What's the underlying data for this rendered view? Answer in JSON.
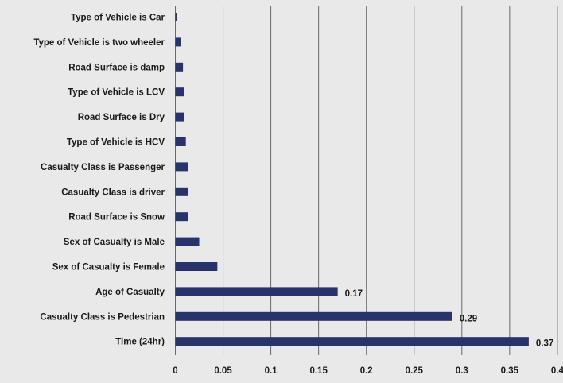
{
  "chart_data": {
    "type": "bar",
    "orientation": "horizontal",
    "title": "",
    "xlabel": "",
    "ylabel": "",
    "categories": [
      "Type of Vehicle is Car",
      "Type of Vehicle is two wheeler",
      "Road Surface is damp",
      "Type of Vehicle is LCV",
      "Road Surface is Dry",
      "Type of Vehicle is HCV",
      "Casualty Class is Passenger",
      "Casualty Class is driver",
      "Road Surface is Snow",
      "Sex of Casualty is Male",
      "Sex of Casualty is Female",
      "Age of Casualty",
      "Casualty Class is Pedestrian",
      "Time (24hr)"
    ],
    "values": [
      0.002,
      0.006,
      0.008,
      0.009,
      0.009,
      0.011,
      0.013,
      0.013,
      0.013,
      0.025,
      0.044,
      0.17,
      0.29,
      0.37
    ],
    "data_labels": [
      "",
      "",
      "",
      "",
      "",
      "",
      "",
      "",
      "",
      "",
      "",
      "0.17",
      "0.29",
      "0.37"
    ],
    "xticks": [
      0,
      0.05,
      0.1,
      0.15,
      0.2,
      0.25,
      0.3,
      0.35,
      0.4
    ],
    "xtick_labels": [
      "0",
      "0.05",
      "0.1",
      "0.15",
      "0.2",
      "0.25",
      "0.3",
      "0.35",
      "0.4"
    ],
    "xlim": [
      0,
      0.4
    ],
    "grid": "vertical",
    "legend": "none",
    "colors": {
      "bar": "#28336c",
      "background": "#e9e9e9",
      "grid": "#6a6a6a"
    }
  }
}
